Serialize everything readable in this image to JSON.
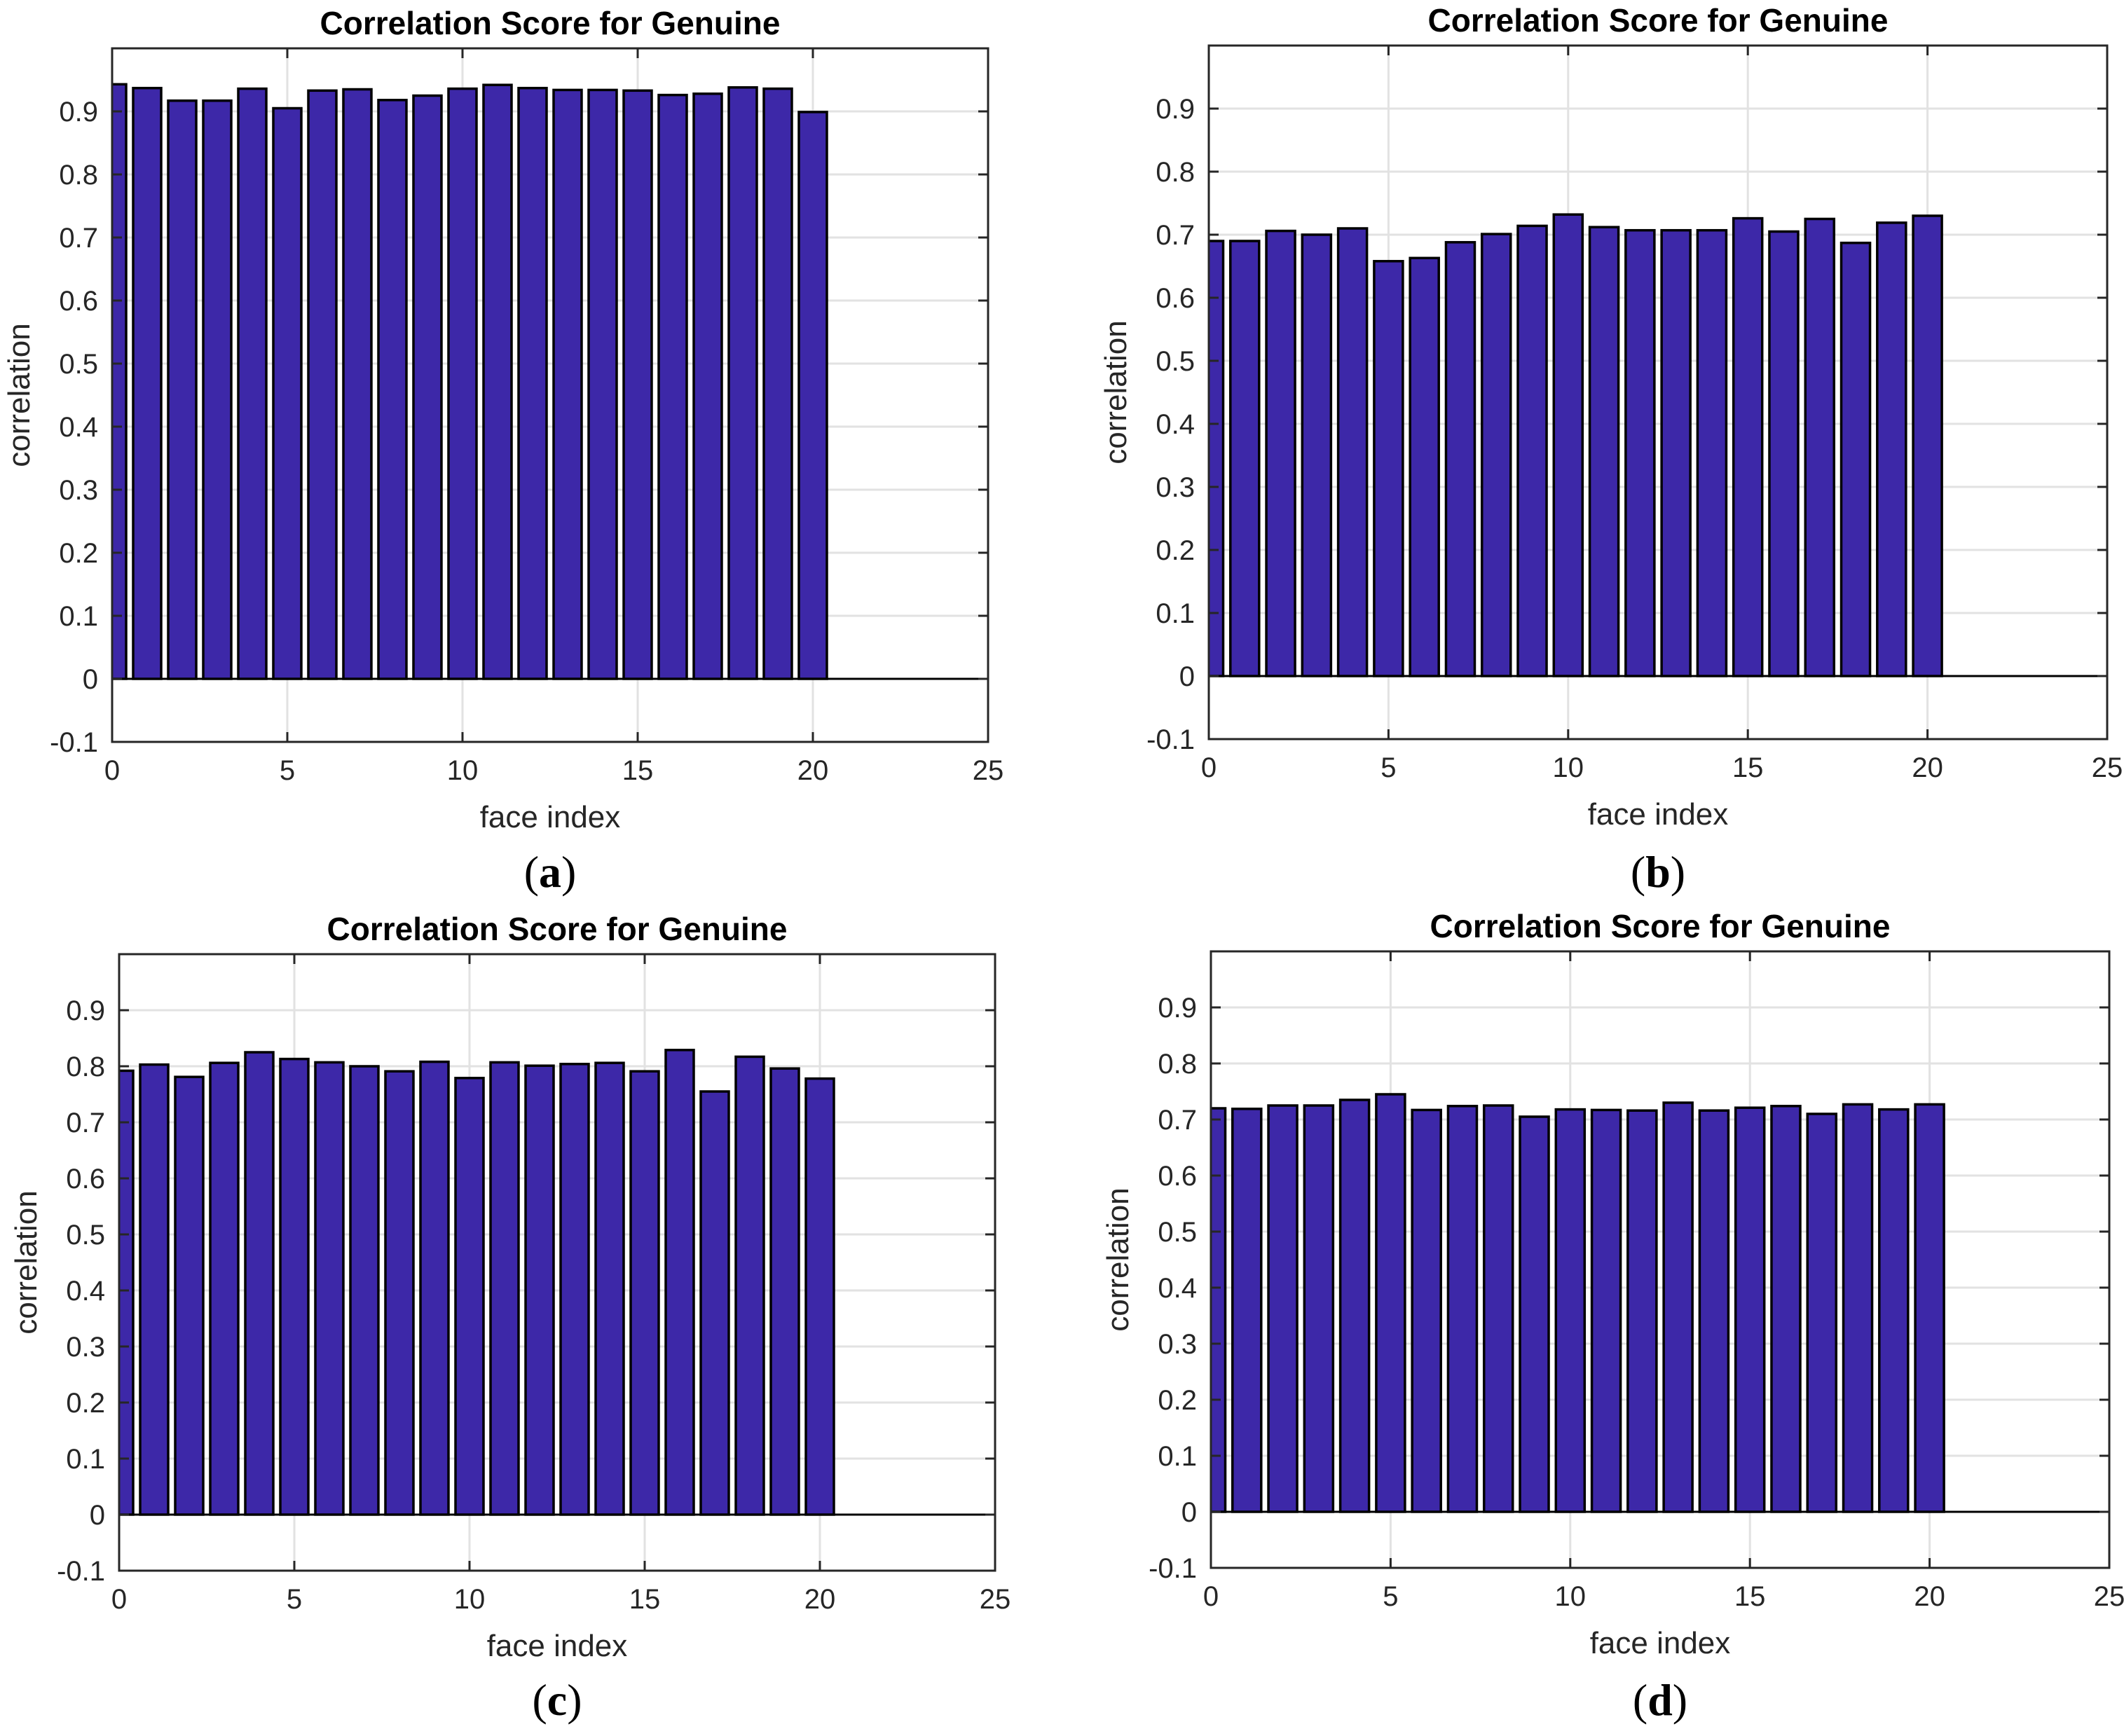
{
  "colors": {
    "background": "#FFFFFF",
    "bar_fill": "#3D28A8",
    "bar_edge": "#000000",
    "grid": "#E2E2E2",
    "axis": "#262626",
    "baseline": "#000000",
    "title_text": "#000000",
    "tick_text": "#262626"
  },
  "captions": {
    "open": "(",
    "close": ")",
    "letters": [
      "a",
      "b",
      "c",
      "d"
    ]
  },
  "chart_data": [
    {
      "type": "bar",
      "panel": "a",
      "title": "Correlation Score for Genuine",
      "xlabel": "face index",
      "ylabel": "correlation",
      "xlim": [
        0,
        25
      ],
      "ylim": [
        -0.1,
        1.0
      ],
      "grid": true,
      "bar_width": 0.8,
      "xticks": [
        0,
        5,
        10,
        15,
        20,
        25
      ],
      "xtick_labels": [
        "0",
        "5",
        "10",
        "15",
        "20",
        "25"
      ],
      "yticks": [
        -0.1,
        0,
        0.1,
        0.2,
        0.3,
        0.4,
        0.5,
        0.6,
        0.7,
        0.8,
        0.9
      ],
      "ytick_labels": [
        "-0.1",
        "0",
        "0.1",
        "0.2",
        "0.3",
        "0.4",
        "0.5",
        "0.6",
        "0.7",
        "0.8",
        "0.9"
      ],
      "x": [
        0,
        1,
        2,
        3,
        4,
        5,
        6,
        7,
        8,
        9,
        10,
        11,
        12,
        13,
        14,
        15,
        16,
        17,
        18,
        19,
        20
      ],
      "values": [
        0.943,
        0.937,
        0.917,
        0.917,
        0.936,
        0.905,
        0.933,
        0.935,
        0.918,
        0.925,
        0.936,
        0.942,
        0.937,
        0.934,
        0.934,
        0.933,
        0.926,
        0.928,
        0.938,
        0.936,
        0.899
      ]
    },
    {
      "type": "bar",
      "panel": "b",
      "title": "Correlation Score for Genuine",
      "xlabel": "face index",
      "ylabel": "correlation",
      "xlim": [
        0,
        25
      ],
      "ylim": [
        -0.1,
        1.0
      ],
      "grid": true,
      "bar_width": 0.8,
      "xticks": [
        0,
        5,
        10,
        15,
        20,
        25
      ],
      "xtick_labels": [
        "0",
        "5",
        "10",
        "15",
        "20",
        "25"
      ],
      "yticks": [
        -0.1,
        0,
        0.1,
        0.2,
        0.3,
        0.4,
        0.5,
        0.6,
        0.7,
        0.8,
        0.9
      ],
      "ytick_labels": [
        "-0.1",
        "0",
        "0.1",
        "0.2",
        "0.3",
        "0.4",
        "0.5",
        "0.6",
        "0.7",
        "0.8",
        "0.9"
      ],
      "x": [
        0,
        1,
        2,
        3,
        4,
        5,
        6,
        7,
        8,
        9,
        10,
        11,
        12,
        13,
        14,
        15,
        16,
        17,
        18,
        19,
        20
      ],
      "values": [
        0.69,
        0.69,
        0.706,
        0.7,
        0.71,
        0.658,
        0.663,
        0.688,
        0.701,
        0.714,
        0.732,
        0.712,
        0.707,
        0.707,
        0.707,
        0.726,
        0.705,
        0.725,
        0.687,
        0.719,
        0.73
      ]
    },
    {
      "type": "bar",
      "panel": "c",
      "title": "Correlation Score for Genuine",
      "xlabel": "face index",
      "ylabel": "correlation",
      "xlim": [
        0,
        25
      ],
      "ylim": [
        -0.1,
        1.0
      ],
      "grid": true,
      "bar_width": 0.8,
      "xticks": [
        0,
        5,
        10,
        15,
        20,
        25
      ],
      "xtick_labels": [
        "0",
        "5",
        "10",
        "15",
        "20",
        "25"
      ],
      "yticks": [
        -0.1,
        0,
        0.1,
        0.2,
        0.3,
        0.4,
        0.5,
        0.6,
        0.7,
        0.8,
        0.9
      ],
      "ytick_labels": [
        "-0.1",
        "0",
        "0.1",
        "0.2",
        "0.3",
        "0.4",
        "0.5",
        "0.6",
        "0.7",
        "0.8",
        "0.9"
      ],
      "x": [
        0,
        1,
        2,
        3,
        4,
        5,
        6,
        7,
        8,
        9,
        10,
        11,
        12,
        13,
        14,
        15,
        16,
        17,
        18,
        19,
        20
      ],
      "values": [
        0.792,
        0.803,
        0.781,
        0.806,
        0.825,
        0.813,
        0.807,
        0.8,
        0.791,
        0.808,
        0.779,
        0.807,
        0.801,
        0.804,
        0.806,
        0.791,
        0.829,
        0.755,
        0.817,
        0.796,
        0.778
      ]
    },
    {
      "type": "bar",
      "panel": "d",
      "title": "Correlation Score for Genuine",
      "xlabel": "face index",
      "ylabel": "correlation",
      "xlim": [
        0,
        25
      ],
      "ylim": [
        -0.1,
        1.0
      ],
      "grid": true,
      "bar_width": 0.8,
      "xticks": [
        0,
        5,
        10,
        15,
        20,
        25
      ],
      "xtick_labels": [
        "0",
        "5",
        "10",
        "15",
        "20",
        "25"
      ],
      "yticks": [
        -0.1,
        0,
        0.1,
        0.2,
        0.3,
        0.4,
        0.5,
        0.6,
        0.7,
        0.8,
        0.9
      ],
      "ytick_labels": [
        "-0.1",
        "0",
        "0.1",
        "0.2",
        "0.3",
        "0.4",
        "0.5",
        "0.6",
        "0.7",
        "0.8",
        "0.9"
      ],
      "x": [
        0,
        1,
        2,
        3,
        4,
        5,
        6,
        7,
        8,
        9,
        10,
        11,
        12,
        13,
        14,
        15,
        16,
        17,
        18,
        19,
        20
      ],
      "values": [
        0.72,
        0.719,
        0.725,
        0.725,
        0.735,
        0.745,
        0.717,
        0.724,
        0.725,
        0.705,
        0.718,
        0.717,
        0.716,
        0.73,
        0.716,
        0.721,
        0.724,
        0.71,
        0.727,
        0.718,
        0.727
      ]
    }
  ]
}
